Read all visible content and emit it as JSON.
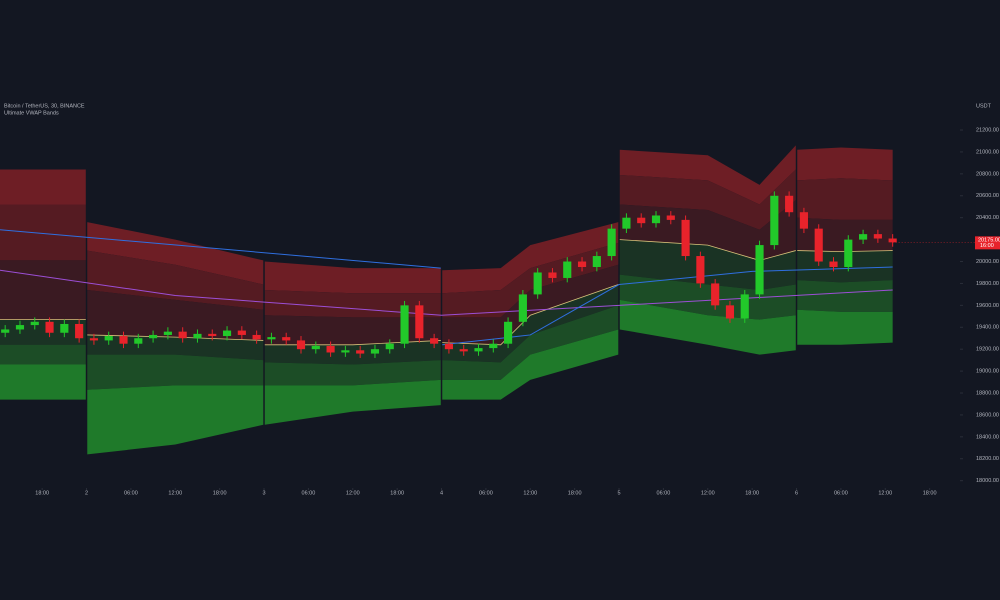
{
  "chart_data": {
    "type": "candlestick",
    "title": "Bitcoin / TetherUS, 30, BINANCE",
    "indicator": "Ultimate VWAP Bands",
    "currency": "USDT",
    "last_price_label": "20175.00",
    "countdown": "16:00",
    "xlim": [
      12.3,
      139.4
    ],
    "ylim": [
      17915,
      21474
    ],
    "xticks": [
      {
        "value": 18,
        "label": "18:00"
      },
      {
        "value": 24,
        "label": "2"
      },
      {
        "value": 30,
        "label": "06:00"
      },
      {
        "value": 36,
        "label": "12:00"
      },
      {
        "value": 42,
        "label": "18:00"
      },
      {
        "value": 48,
        "label": "3"
      },
      {
        "value": 54,
        "label": "06:00"
      },
      {
        "value": 60,
        "label": "12:00"
      },
      {
        "value": 66,
        "label": "18:00"
      },
      {
        "value": 72,
        "label": "4"
      },
      {
        "value": 78,
        "label": "06:00"
      },
      {
        "value": 84,
        "label": "12:00"
      },
      {
        "value": 90,
        "label": "18:00"
      },
      {
        "value": 96,
        "label": "5"
      },
      {
        "value": 102,
        "label": "06:00"
      },
      {
        "value": 108,
        "label": "12:00"
      },
      {
        "value": 114,
        "label": "18:00"
      },
      {
        "value": 120,
        "label": "6"
      },
      {
        "value": 126,
        "label": "06:00"
      },
      {
        "value": 132,
        "label": "12:00"
      },
      {
        "value": 138,
        "label": "18:00"
      }
    ],
    "yticks": [
      {
        "value": 21200,
        "label": "21200.00"
      },
      {
        "value": 21000,
        "label": "21000.00"
      },
      {
        "value": 20800,
        "label": "20800.00"
      },
      {
        "value": 20600,
        "label": "20600.00"
      },
      {
        "value": 20400,
        "label": "20400.00"
      },
      {
        "value": 20000,
        "label": "20000.00"
      },
      {
        "value": 19800,
        "label": "19800.00"
      },
      {
        "value": 19600,
        "label": "19600.00"
      },
      {
        "value": 19400,
        "label": "19400.00"
      },
      {
        "value": 19200,
        "label": "19200.00"
      },
      {
        "value": 19000,
        "label": "19000.00"
      },
      {
        "value": 18800,
        "label": "18800.00"
      },
      {
        "value": 18600,
        "label": "18600.00"
      },
      {
        "value": 18400,
        "label": "18400.00"
      },
      {
        "value": 18200,
        "label": "18200.00"
      },
      {
        "value": 18000,
        "label": "18000.00"
      }
    ],
    "up_color": "#22c92a",
    "down_color": "#e8232b",
    "x": [
      13,
      15,
      17,
      19,
      21,
      23,
      25,
      27,
      29,
      31,
      33,
      35,
      37,
      39,
      41,
      43,
      45,
      47,
      49,
      51,
      53,
      55,
      57,
      59,
      61,
      63,
      65,
      67,
      69,
      71,
      73,
      75,
      77,
      79,
      81,
      83,
      85,
      87,
      89,
      91,
      93,
      95,
      97,
      99,
      101,
      103,
      105,
      107,
      109,
      111,
      113,
      115,
      117,
      119,
      121,
      123,
      125,
      127,
      129,
      131,
      133
    ],
    "open": [
      19350,
      19380,
      19420,
      19450,
      19350,
      19430,
      19300,
      19280,
      19320,
      19250,
      19300,
      19330,
      19360,
      19300,
      19340,
      19320,
      19370,
      19330,
      19290,
      19310,
      19280,
      19200,
      19230,
      19170,
      19190,
      19160,
      19200,
      19250,
      19600,
      19300,
      19250,
      19200,
      19180,
      19210,
      19250,
      19450,
      19700,
      19900,
      19850,
      20000,
      19950,
      20050,
      20300,
      20400,
      20350,
      20420,
      20380,
      20050,
      19800,
      19600,
      19480,
      19700,
      20150,
      20600,
      20450,
      20300,
      20000,
      19950,
      20200,
      20250,
      20210
    ],
    "high": [
      19420,
      19460,
      19490,
      19490,
      19470,
      19470,
      19340,
      19360,
      19360,
      19340,
      19370,
      19400,
      19400,
      19380,
      19380,
      19410,
      19410,
      19370,
      19350,
      19350,
      19320,
      19270,
      19270,
      19230,
      19230,
      19240,
      19290,
      19640,
      19640,
      19340,
      19290,
      19240,
      19250,
      19290,
      19490,
      19740,
      19940,
      19940,
      20040,
      20040,
      20090,
      20340,
      20440,
      20440,
      20460,
      20460,
      20420,
      20090,
      19840,
      19640,
      19740,
      20190,
      20640,
      20640,
      20490,
      20340,
      20040,
      20240,
      20290,
      20290,
      20250
    ],
    "low": [
      19310,
      19340,
      19380,
      19310,
      19310,
      19260,
      19240,
      19240,
      19210,
      19210,
      19260,
      19290,
      19260,
      19260,
      19280,
      19280,
      19290,
      19250,
      19250,
      19240,
      19160,
      19160,
      19130,
      19130,
      19120,
      19120,
      19160,
      19210,
      19260,
      19210,
      19160,
      19140,
      19140,
      19170,
      19210,
      19410,
      19660,
      19810,
      19810,
      19910,
      19910,
      20010,
      20260,
      20310,
      20310,
      20340,
      20010,
      19760,
      19560,
      19440,
      19440,
      19660,
      20110,
      20410,
      20260,
      19960,
      19910,
      19910,
      20160,
      20170,
      20135
    ],
    "close": [
      19380,
      19420,
      19450,
      19350,
      19430,
      19300,
      19280,
      19320,
      19250,
      19300,
      19330,
      19360,
      19300,
      19340,
      19320,
      19370,
      19330,
      19290,
      19310,
      19280,
      19200,
      19230,
      19170,
      19190,
      19160,
      19200,
      19250,
      19600,
      19300,
      19250,
      19200,
      19180,
      19210,
      19250,
      19450,
      19700,
      19900,
      19850,
      20000,
      19950,
      20050,
      20300,
      20400,
      20350,
      20420,
      20380,
      20050,
      19800,
      19600,
      19480,
      19700,
      20150,
      20600,
      20450,
      20300,
      20000,
      19950,
      20200,
      20250,
      20210,
      20175
    ],
    "bands": {
      "x": [
        12.3,
        23.9,
        24,
        24.1,
        36,
        47.9,
        48,
        48.1,
        60,
        71.9,
        72,
        72.1,
        80,
        84,
        95.9,
        96,
        96.1,
        108,
        115,
        119.9,
        120,
        120.1,
        126,
        133
      ],
      "series": [
        {
          "color": "#6e1e25",
          "values": [
            20840,
            20840,
            null,
            20360,
            20200,
            20010,
            null,
            20000,
            19940,
            19940,
            null,
            19920,
            19940,
            20150,
            20360,
            null,
            21020,
            20970,
            20700,
            21060,
            null,
            21020,
            21040,
            21020
          ]
        },
        {
          "color": "#551b22",
          "values": [
            20520,
            20520,
            null,
            20100,
            19970,
            19790,
            null,
            19740,
            19710,
            19710,
            null,
            19710,
            19740,
            19940,
            20170,
            null,
            20790,
            20740,
            20520,
            20840,
            null,
            20740,
            20760,
            20740
          ]
        },
        {
          "color": "#3a1a22",
          "values": [
            20010,
            20010,
            null,
            19740,
            19650,
            19560,
            null,
            19510,
            19490,
            19490,
            null,
            19490,
            19490,
            19740,
            19970,
            null,
            20520,
            20470,
            20290,
            20560,
            null,
            20400,
            20380,
            20380
          ]
        },
        {
          "color": "#1a3324",
          "line_color": "#d8c27a",
          "values": [
            19470,
            19470,
            null,
            19330,
            19310,
            19280,
            null,
            19240,
            19240,
            19280,
            null,
            19260,
            19240,
            19510,
            19790,
            null,
            20200,
            20150,
            20010,
            20100,
            null,
            20100,
            20090,
            20100
          ]
        },
        {
          "color": "#1c4d26",
          "values": [
            19240,
            19240,
            null,
            19150,
            19150,
            19100,
            null,
            19080,
            19060,
            19100,
            null,
            19100,
            19080,
            19330,
            19600,
            null,
            19880,
            19790,
            19740,
            19790,
            null,
            19830,
            19810,
            19830
          ]
        },
        {
          "color": "#1f7a2a",
          "values": [
            19060,
            19060,
            null,
            18830,
            18870,
            18870,
            null,
            18870,
            18870,
            18920,
            null,
            18920,
            18920,
            19150,
            19380,
            null,
            19650,
            19510,
            19470,
            19510,
            null,
            19560,
            19540,
            19540
          ]
        },
        {
          "values": [
            18740,
            18740,
            null,
            18240,
            18330,
            18510,
            null,
            18510,
            18630,
            18690,
            null,
            18740,
            18740,
            18920,
            19150,
            null,
            19380,
            19240,
            19150,
            19190,
            null,
            19240,
            19240,
            19260
          ]
        }
      ]
    },
    "lines": [
      {
        "color": "#9c4fd6",
        "x": [
          12.3,
          36,
          72,
          96,
          133
        ],
        "values": [
          19920,
          19690,
          19510,
          19600,
          19740
        ]
      },
      {
        "color": "#2f6fe0",
        "x": [
          12.3,
          71.9,
          72,
          72.1,
          84,
          96,
          114,
          133
        ],
        "values": [
          20290,
          19940,
          null,
          19240,
          19330,
          19790,
          19910,
          19950
        ]
      }
    ]
  }
}
